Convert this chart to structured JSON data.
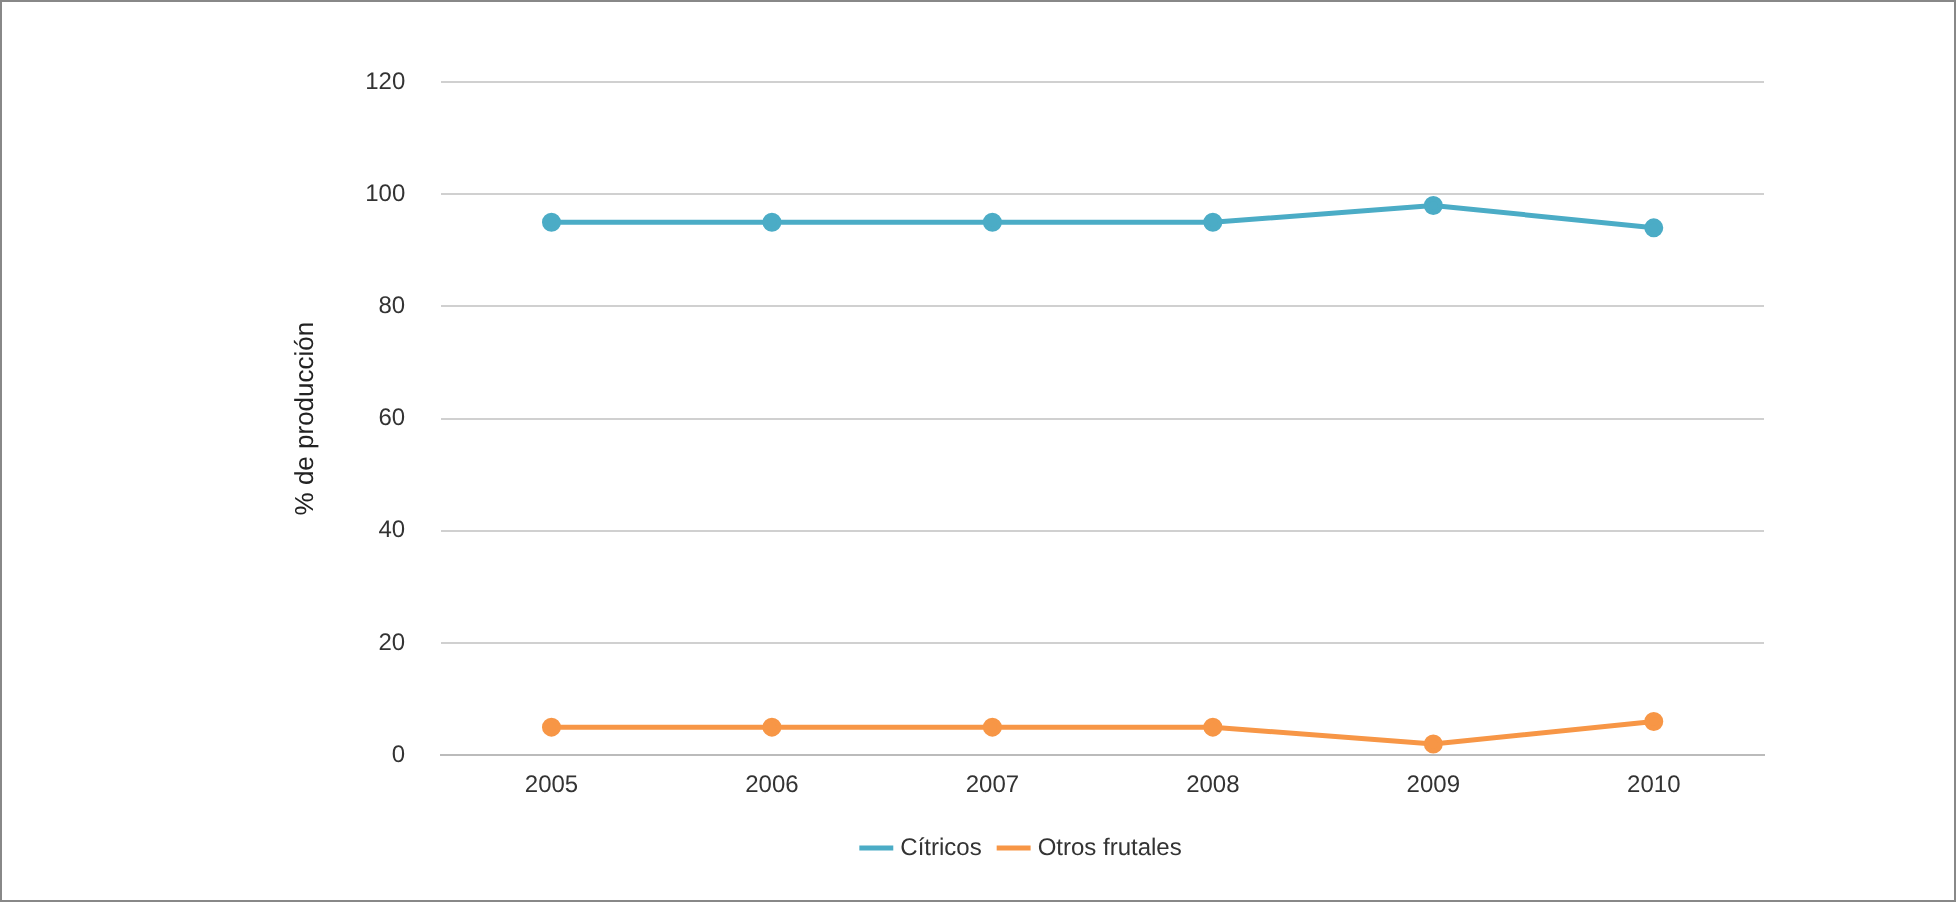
{
  "chart_data": {
    "type": "line",
    "ylabel": "% de producción",
    "categories": [
      "2005",
      "2006",
      "2007",
      "2008",
      "2009",
      "2010"
    ],
    "series": [
      {
        "name": "Cítricos",
        "color": "#4bacc6",
        "values": [
          95,
          95,
          95,
          95,
          98,
          94
        ]
      },
      {
        "name": "Otros frutales",
        "color": "#f79646",
        "values": [
          5,
          5,
          5,
          5,
          2,
          6
        ]
      }
    ],
    "ylim": [
      0,
      120
    ],
    "yticks": [
      0,
      20,
      40,
      60,
      80,
      100,
      120
    ],
    "grid": "y",
    "legend": "bottom",
    "marker": "circle",
    "line_style": "solid"
  }
}
